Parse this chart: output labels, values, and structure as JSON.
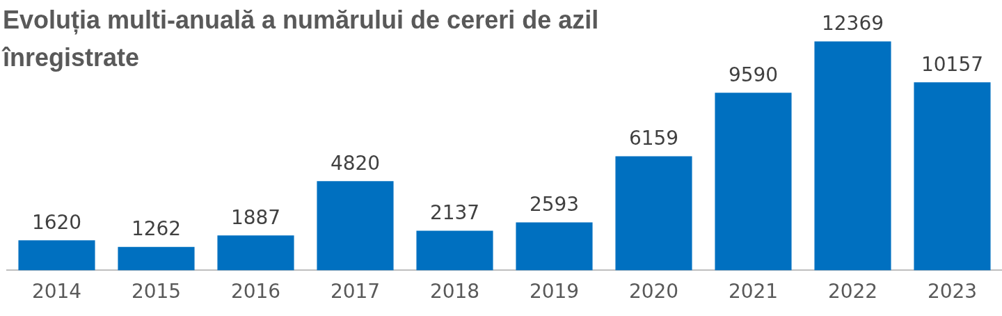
{
  "chart_data": {
    "type": "bar",
    "title": "Evoluția multi-anuală a numărului de cereri de azil înregistrate",
    "categories": [
      "2014",
      "2015",
      "2016",
      "2017",
      "2018",
      "2019",
      "2020",
      "2021",
      "2022",
      "2023"
    ],
    "values": [
      1620,
      1262,
      1887,
      4820,
      2137,
      2593,
      6159,
      9590,
      12369,
      10157
    ],
    "color": "#0070c0",
    "data_labels": true
  }
}
